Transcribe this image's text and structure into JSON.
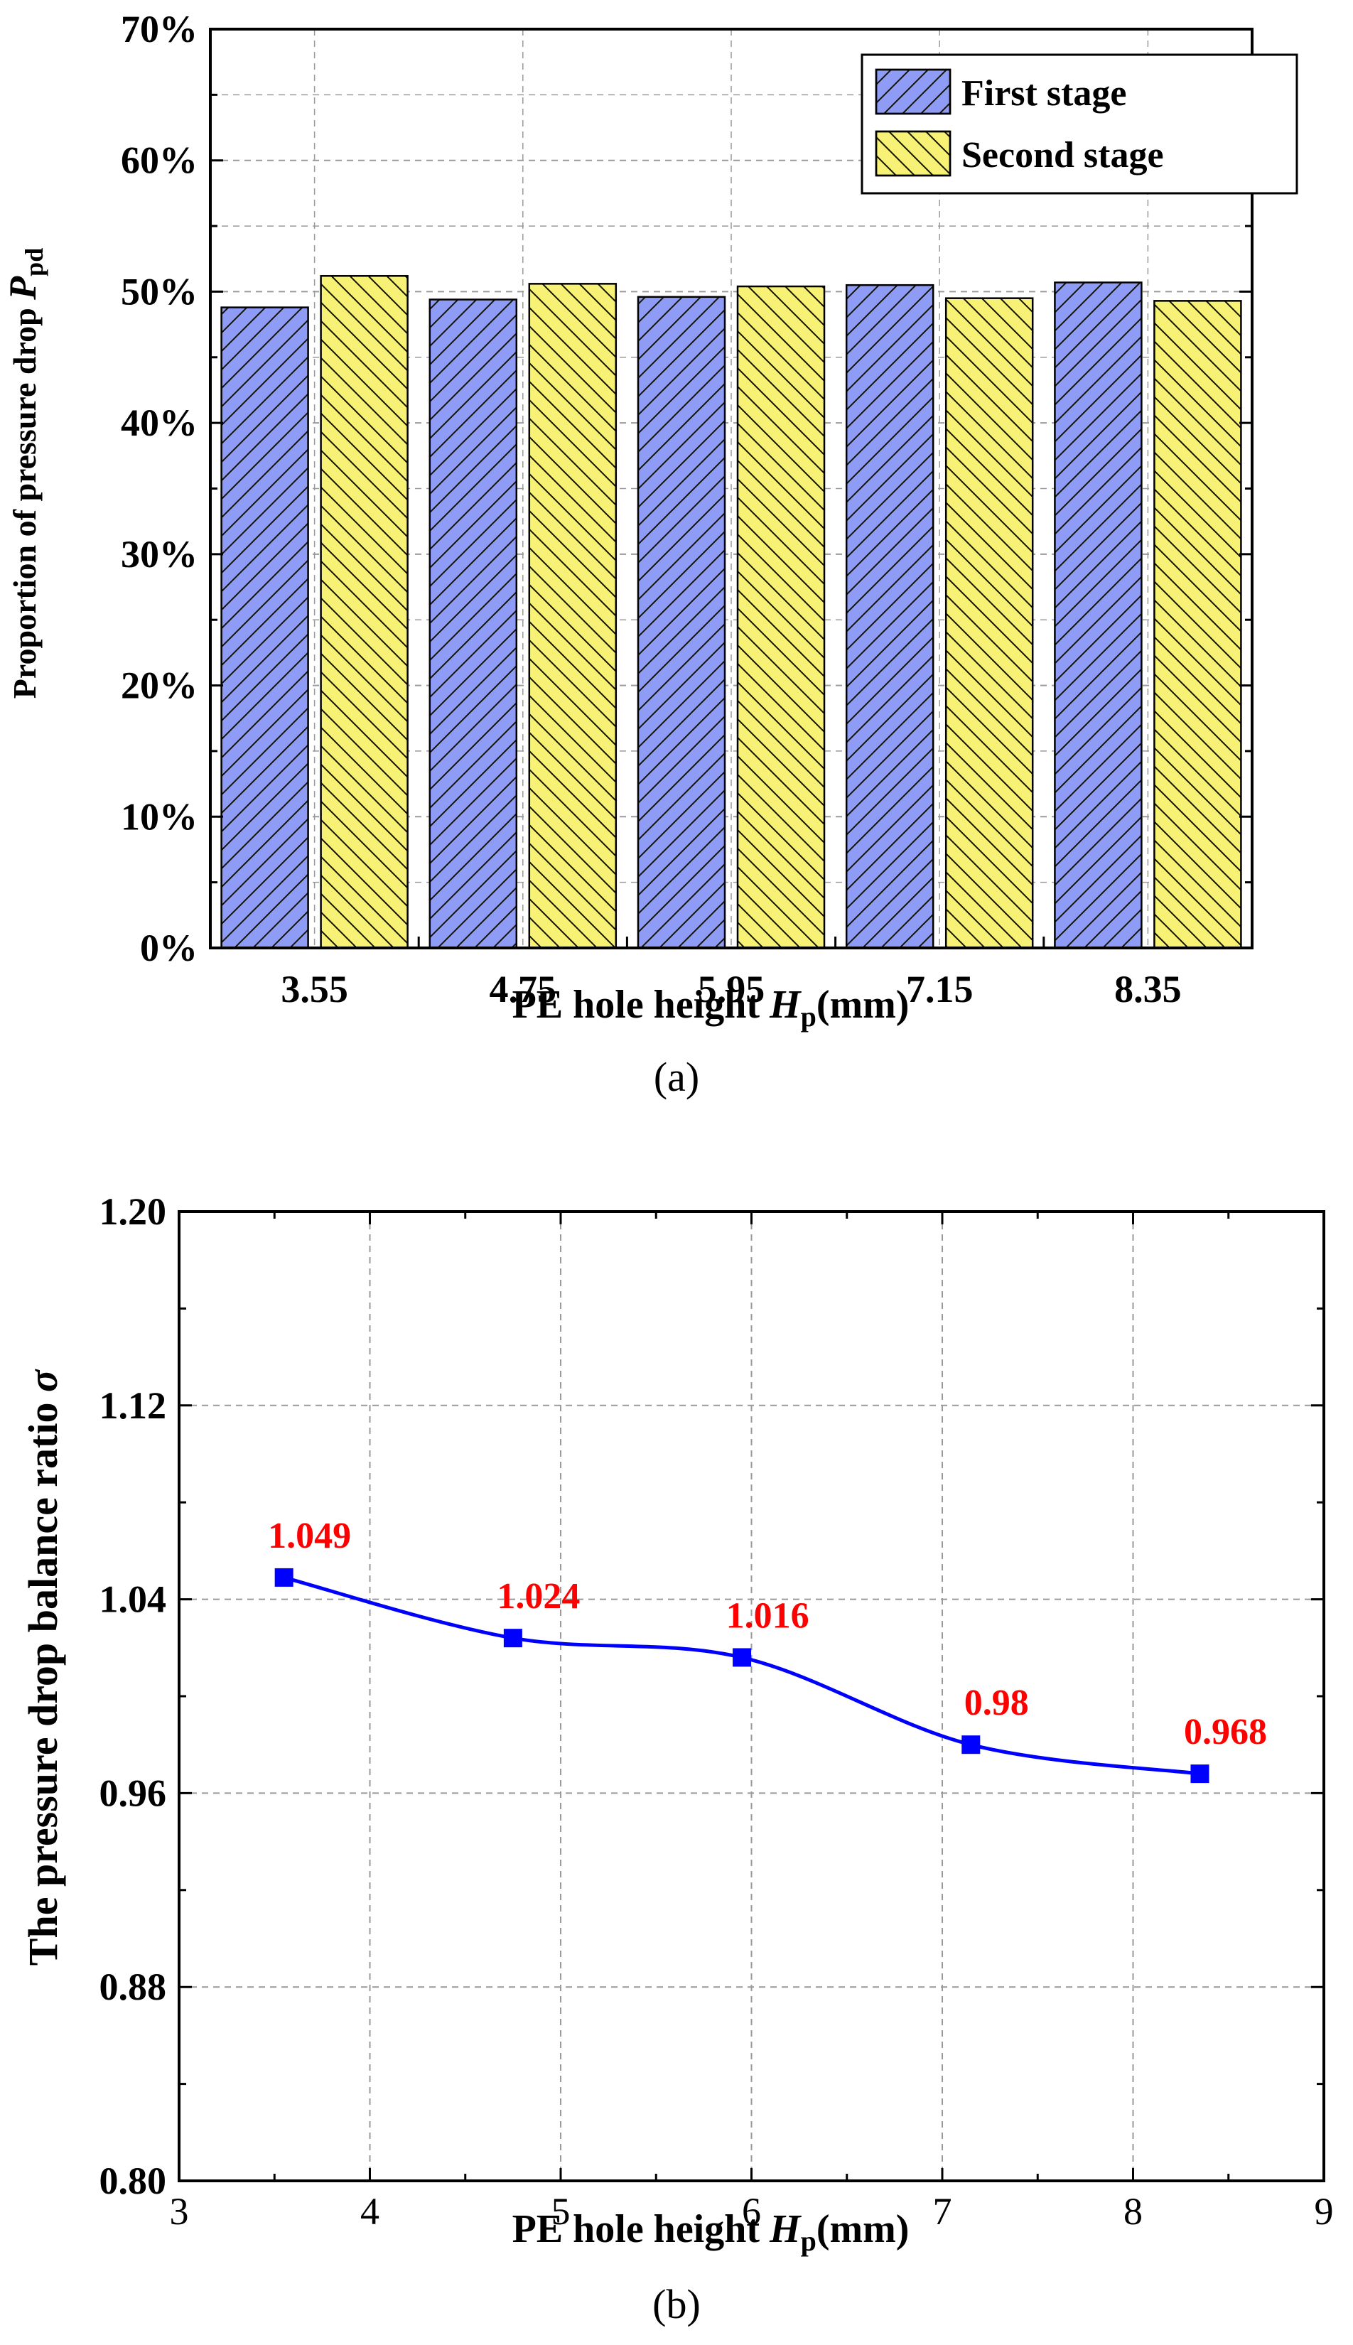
{
  "chart_data": [
    {
      "id": "a",
      "type": "bar",
      "caption": "(a)",
      "categories": [
        "3.55",
        "4.75",
        "5.95",
        "7.15",
        "8.35"
      ],
      "series": [
        {
          "name": "First stage",
          "values": [
            48.8,
            49.4,
            49.6,
            50.5,
            50.7
          ],
          "color": "#8f9cf5",
          "hatch": "forward"
        },
        {
          "name": "Second stage",
          "values": [
            51.2,
            50.6,
            50.4,
            49.5,
            49.3
          ],
          "color": "#f7f276",
          "hatch": "backward"
        }
      ],
      "ylim": [
        0,
        70
      ],
      "yticks": [
        0,
        10,
        20,
        30,
        40,
        50,
        60,
        70
      ],
      "ytick_labels": [
        "0%",
        "10%",
        "20%",
        "30%",
        "40%",
        "50%",
        "60%",
        "70%"
      ],
      "xlabel": {
        "main": "PE hole height ",
        "var": "H",
        "sub": "p",
        "unit": "(mm)"
      },
      "ylabel": {
        "main": "Proportion of pressure drop  ",
        "var": "P",
        "sub": "pd"
      },
      "legend_position": "top-right",
      "grid": true
    },
    {
      "id": "b",
      "type": "line",
      "caption": "(b)",
      "x": [
        3.55,
        4.75,
        5.95,
        7.15,
        8.35
      ],
      "y": [
        1.049,
        1.024,
        1.016,
        0.98,
        0.968
      ],
      "data_labels": [
        "1.049",
        "1.024",
        "1.016",
        "0.98",
        "0.968"
      ],
      "xlim": [
        3,
        9
      ],
      "xticks": [
        3,
        4,
        5,
        6,
        7,
        8,
        9
      ],
      "xtick_labels": [
        "3",
        "4",
        "5",
        "6",
        "7",
        "8",
        "9"
      ],
      "ylim": [
        0.8,
        1.2
      ],
      "yticks": [
        0.8,
        0.88,
        0.96,
        1.04,
        1.12,
        1.2
      ],
      "ytick_labels": [
        "0.80",
        "0.88",
        "0.96",
        "1.04",
        "1.12",
        "1.20"
      ],
      "xlabel": {
        "main": "PE hole height ",
        "var": "H",
        "sub": "p",
        "unit": "(mm)"
      },
      "ylabel": {
        "main": "The pressure drop balance ratio  ",
        "var": "σ"
      },
      "line_color": "#0000ff",
      "label_color": "#ff0000",
      "grid": true
    }
  ]
}
